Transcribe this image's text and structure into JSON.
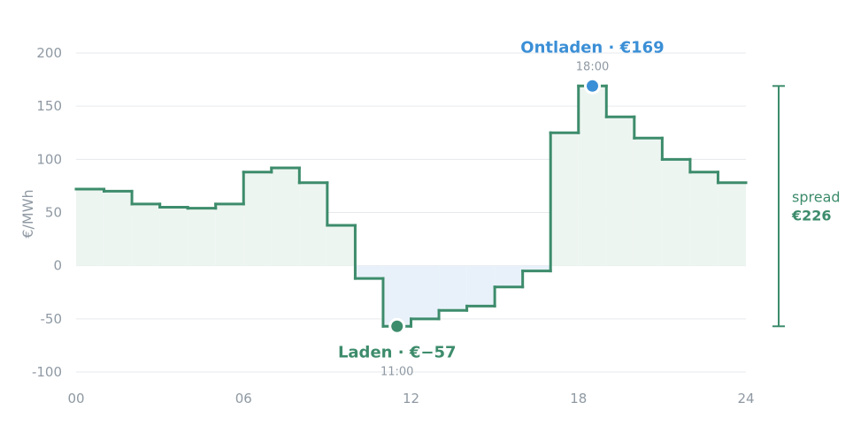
{
  "chart_data": {
    "type": "line",
    "step": true,
    "ylabel": "€/MWh",
    "xlabel": "",
    "ylim": [
      -100,
      200
    ],
    "xlim": [
      0,
      24
    ],
    "y_ticks": [
      "200",
      "150",
      "100",
      "50",
      "0",
      "-50",
      "-100"
    ],
    "y_tick_values": [
      200,
      150,
      100,
      50,
      0,
      -50,
      -100
    ],
    "x_ticks": [
      "00",
      "06",
      "12",
      "18",
      "24"
    ],
    "x_tick_values": [
      0,
      6,
      12,
      18,
      24
    ],
    "grid": true,
    "series": [
      {
        "hours": [
          0,
          1,
          2,
          3,
          4,
          5,
          6,
          7,
          8,
          9,
          10,
          11,
          12,
          13,
          14,
          15,
          16,
          17,
          18,
          19,
          20,
          21,
          22,
          23
        ],
        "values": [
          72,
          70,
          58,
          55,
          54,
          58,
          88,
          92,
          78,
          38,
          -12,
          -57,
          -50,
          -42,
          -38,
          -20,
          -5,
          125,
          169,
          140,
          120,
          100,
          88,
          78
        ]
      }
    ],
    "annotations": {
      "charge": {
        "label": "Laden · €−57",
        "time": "11:00",
        "hour": 11,
        "value": -57
      },
      "discharge": {
        "label": "Ontladen · €169",
        "time": "18:00",
        "hour": 18,
        "value": 169
      },
      "spread": {
        "label": "spread",
        "value_label": "€226",
        "low": -57,
        "high": 169
      }
    },
    "colors": {
      "line": "#3d8c6c",
      "fill_positive": "#edf5f1",
      "fill_negative": "#e8f1f9",
      "discharge_marker": "#3b8fd6",
      "charge_marker": "#3d8c6c",
      "grid": "#e6eaed",
      "axis_text": "#8f99a3"
    }
  }
}
